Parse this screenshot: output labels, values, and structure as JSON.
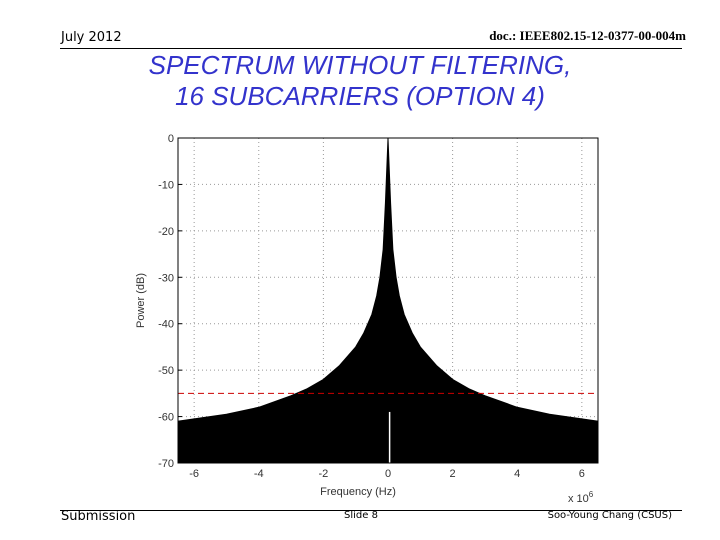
{
  "header": {
    "date": "July 2012",
    "doc_id": "doc.: IEEE802.15-12-0377-00-004m"
  },
  "slide_title": {
    "line1": "SPECTRUM WITHOUT FILTERING,",
    "line2": "16 SUBCARRIERS (OPTION 4)"
  },
  "footer": {
    "left": "Submission",
    "center": "Slide 8",
    "right": "Soo-Young Chang (CSUS)"
  },
  "colors": {
    "title": "#3333cc",
    "spectrum_fill": "#000000",
    "mask_line": "#cc0000",
    "grid": "#999999"
  },
  "chart_data": {
    "type": "area",
    "title": "",
    "xlabel": "Frequency (Hz)",
    "ylabel": "Power (dB)",
    "x_exponent_label": "x 10",
    "x_exponent_power": "6",
    "xlim": [
      -6.5,
      6.5
    ],
    "ylim": [
      -70,
      0
    ],
    "x_scale": 1000000,
    "xticks": [
      -6,
      -4,
      -2,
      0,
      2,
      4,
      6
    ],
    "xtick_labels": [
      "-6",
      "-4",
      "-2",
      "0",
      "2",
      "4",
      "6"
    ],
    "yticks": [
      0,
      -10,
      -20,
      -30,
      -40,
      -50,
      -60,
      -70
    ],
    "ytick_labels": [
      "0",
      "-10",
      "-20",
      "-30",
      "-40",
      "-50",
      "-60",
      "-70"
    ],
    "grid": true,
    "series": [
      {
        "x": [
          -6.5,
          -6,
          -5,
          -4,
          -3,
          -2.5,
          -2,
          -1.5,
          -1,
          -0.75,
          -0.5,
          -0.35,
          -0.25,
          -0.15,
          -0.08,
          0,
          0.08,
          0.15,
          0.25,
          0.35,
          0.5,
          0.75,
          1,
          1.5,
          2,
          2.5,
          3,
          4,
          5,
          6,
          6.5
        ],
        "upper": [
          -61,
          -60.5,
          -59.5,
          -58,
          -55.5,
          -54,
          -52,
          -49,
          -45,
          -42,
          -38,
          -34,
          -30,
          -24,
          -14,
          0,
          -14,
          -24,
          -30,
          -34,
          -38,
          -42,
          -45,
          -49,
          -52,
          -54,
          -55.5,
          -58,
          -59.5,
          -60.5,
          -61
        ]
      }
    ],
    "mask_level": -55,
    "notch_x": 0.05,
    "notch_top": -59
  }
}
